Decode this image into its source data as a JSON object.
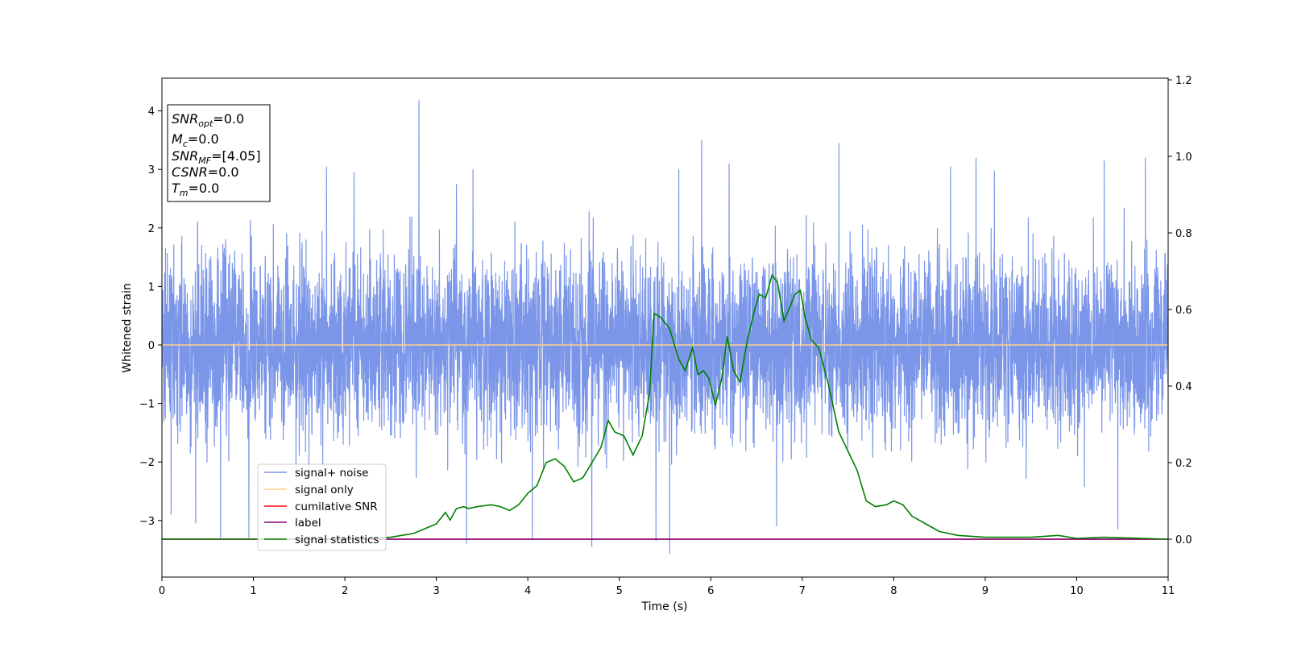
{
  "chart_data": {
    "type": "line",
    "xlabel": "Time (s)",
    "ylabel_left": "Whitened strain",
    "ylabel_right": "",
    "xlim": [
      0,
      11
    ],
    "ylim_left": [
      -4,
      4.5
    ],
    "ylim_right": [
      -0.1,
      1.2
    ],
    "x_ticks": [
      0,
      1,
      2,
      3,
      4,
      5,
      6,
      7,
      8,
      9,
      10,
      11
    ],
    "y_ticks_left": [
      {
        "value": 4,
        "label": "4"
      },
      {
        "value": 3,
        "label": "3"
      },
      {
        "value": 2,
        "label": "2"
      },
      {
        "value": 1,
        "label": "1"
      },
      {
        "value": 0,
        "label": "0"
      },
      {
        "value": -1,
        "label": "−1"
      },
      {
        "value": -2,
        "label": "−2"
      },
      {
        "value": -3,
        "label": "−3"
      }
    ],
    "y_ticks_right": [
      {
        "value": 1.2,
        "label": "1.2"
      },
      {
        "value": 1.0,
        "label": "1.0"
      },
      {
        "value": 0.8,
        "label": "0.8"
      },
      {
        "value": 0.6,
        "label": "0.6"
      },
      {
        "value": 0.4,
        "label": "0.4"
      },
      {
        "value": 0.2,
        "label": "0.2"
      },
      {
        "value": 0.0,
        "label": "0.0"
      }
    ],
    "grid": false,
    "legend_position": "lower-left",
    "info_box": {
      "lines": [
        {
          "sym": "SNR",
          "sub": "opt",
          "val": "=0.0"
        },
        {
          "sym": "M",
          "sub": "c",
          "val": "=0.0"
        },
        {
          "sym": "SNR",
          "sub": "MF",
          "val": "=[4.05]"
        },
        {
          "sym": "CSNR",
          "sub": "",
          "val": "=0.0"
        },
        {
          "sym": "T",
          "sub": "m",
          "val": "=0.0"
        }
      ]
    },
    "series": [
      {
        "name": "signal+ noise",
        "axis": "left",
        "color": "#7b96e8",
        "kind": "noise",
        "sigma": 0.75,
        "spikes": [
          [
            2.81,
            4.18
          ],
          [
            5.55,
            -3.57
          ],
          [
            1.8,
            3.05
          ],
          [
            2.1,
            2.95
          ],
          [
            3.4,
            3.0
          ],
          [
            5.9,
            3.5
          ],
          [
            6.2,
            3.1
          ],
          [
            8.9,
            3.2
          ],
          [
            10.3,
            3.15
          ],
          [
            10.75,
            3.2
          ],
          [
            0.64,
            -3.3
          ],
          [
            0.95,
            -3.3
          ],
          [
            3.33,
            -3.4
          ],
          [
            4.7,
            -3.45
          ],
          [
            5.4,
            -3.35
          ],
          [
            10.45,
            -3.15
          ],
          [
            3.22,
            2.75
          ],
          [
            5.65,
            3.0
          ],
          [
            7.4,
            3.45
          ],
          [
            9.1,
            2.98
          ],
          [
            4.05,
            -3.3
          ],
          [
            6.72,
            -3.1
          ],
          [
            8.62,
            3.05
          ],
          [
            0.1,
            -2.9
          ],
          [
            0.37,
            -3.05
          ]
        ]
      },
      {
        "name": "signal only",
        "axis": "left",
        "color": "#ffd28c",
        "kind": "constant",
        "value": 0
      },
      {
        "name": "cumilative SNR",
        "axis": "right",
        "color": "#ff0000",
        "kind": "constant",
        "value": 0
      },
      {
        "name": "label",
        "axis": "right",
        "color": "#800080",
        "kind": "constant",
        "value": 0
      },
      {
        "name": "signal statistics",
        "axis": "right",
        "color": "#008000",
        "kind": "line",
        "points": [
          [
            0,
            0.0
          ],
          [
            1.0,
            0.0
          ],
          [
            2.0,
            0.0
          ],
          [
            2.5,
            0.005
          ],
          [
            2.75,
            0.015
          ],
          [
            2.9,
            0.03
          ],
          [
            3.0,
            0.04
          ],
          [
            3.1,
            0.07
          ],
          [
            3.15,
            0.05
          ],
          [
            3.22,
            0.08
          ],
          [
            3.3,
            0.085
          ],
          [
            3.35,
            0.08
          ],
          [
            3.45,
            0.085
          ],
          [
            3.6,
            0.09
          ],
          [
            3.7,
            0.085
          ],
          [
            3.8,
            0.075
          ],
          [
            3.9,
            0.09
          ],
          [
            4.0,
            0.12
          ],
          [
            4.1,
            0.14
          ],
          [
            4.2,
            0.2
          ],
          [
            4.3,
            0.21
          ],
          [
            4.4,
            0.19
          ],
          [
            4.5,
            0.15
          ],
          [
            4.6,
            0.16
          ],
          [
            4.7,
            0.2
          ],
          [
            4.8,
            0.24
          ],
          [
            4.88,
            0.31
          ],
          [
            4.95,
            0.28
          ],
          [
            5.05,
            0.27
          ],
          [
            5.15,
            0.22
          ],
          [
            5.25,
            0.27
          ],
          [
            5.33,
            0.38
          ],
          [
            5.38,
            0.59
          ],
          [
            5.45,
            0.58
          ],
          [
            5.55,
            0.55
          ],
          [
            5.65,
            0.47
          ],
          [
            5.72,
            0.44
          ],
          [
            5.8,
            0.5
          ],
          [
            5.86,
            0.43
          ],
          [
            5.92,
            0.44
          ],
          [
            5.98,
            0.42
          ],
          [
            6.05,
            0.35
          ],
          [
            6.12,
            0.42
          ],
          [
            6.18,
            0.53
          ],
          [
            6.25,
            0.44
          ],
          [
            6.32,
            0.41
          ],
          [
            6.4,
            0.52
          ],
          [
            6.48,
            0.6
          ],
          [
            6.53,
            0.64
          ],
          [
            6.6,
            0.63
          ],
          [
            6.67,
            0.69
          ],
          [
            6.73,
            0.67
          ],
          [
            6.8,
            0.57
          ],
          [
            6.87,
            0.61
          ],
          [
            6.92,
            0.64
          ],
          [
            6.98,
            0.65
          ],
          [
            7.03,
            0.58
          ],
          [
            7.1,
            0.52
          ],
          [
            7.18,
            0.5
          ],
          [
            7.28,
            0.41
          ],
          [
            7.4,
            0.28
          ],
          [
            7.6,
            0.18
          ],
          [
            7.7,
            0.1
          ],
          [
            7.8,
            0.085
          ],
          [
            7.92,
            0.09
          ],
          [
            8.0,
            0.1
          ],
          [
            8.1,
            0.09
          ],
          [
            8.2,
            0.06
          ],
          [
            8.35,
            0.04
          ],
          [
            8.5,
            0.02
          ],
          [
            8.7,
            0.01
          ],
          [
            9.0,
            0.005
          ],
          [
            9.5,
            0.005
          ],
          [
            9.8,
            0.01
          ],
          [
            10.0,
            0.002
          ],
          [
            10.3,
            0.005
          ],
          [
            10.6,
            0.003
          ],
          [
            11.0,
            0.0
          ]
        ]
      }
    ]
  }
}
